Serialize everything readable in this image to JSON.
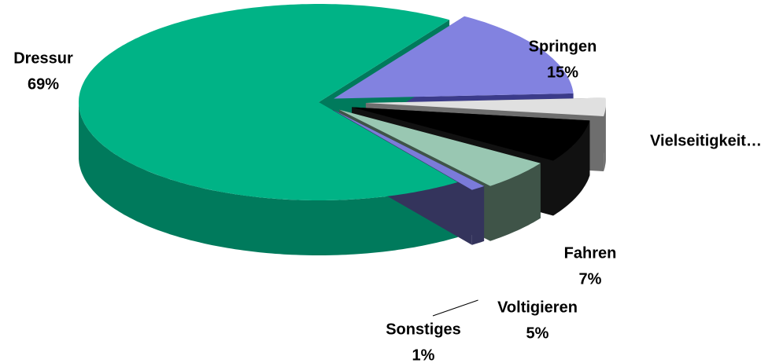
{
  "chart_data": {
    "type": "pie",
    "categories": [
      "Springen",
      "Vielseitigkeit…",
      "Fahren",
      "Voltigieren",
      "Sonstiges",
      "Dressur"
    ],
    "values": [
      15,
      3,
      7,
      5,
      1,
      69
    ],
    "value_labels": [
      "15%",
      null,
      "7%",
      "5%",
      "1%",
      "69%"
    ],
    "colors": [
      "#8282e0",
      "#e0e0e0",
      "#000000",
      "#99c7b2",
      "#7b7bd9",
      "#00b386"
    ],
    "side_colors": [
      "#3b3b8a",
      "#6e6e6e",
      "#111111",
      "#3f5448",
      "#34345c",
      "#007a5c"
    ]
  }
}
